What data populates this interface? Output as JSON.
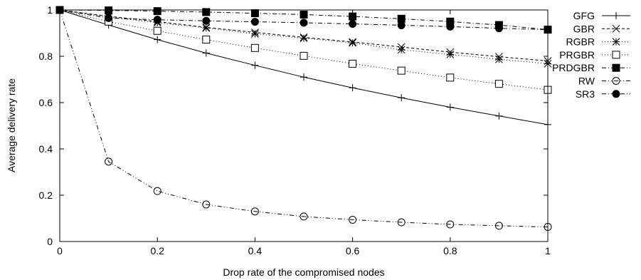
{
  "chart_data": {
    "type": "line",
    "xlabel": "Drop rate of the compromised nodes",
    "ylabel": "Average delivery rate",
    "xlim": [
      0,
      1
    ],
    "ylim": [
      0,
      1
    ],
    "x_ticks": [
      "0",
      "0.2",
      "0.4",
      "0.6",
      "0.8",
      "1"
    ],
    "y_ticks": [
      "0",
      "0.2",
      "0.4",
      "0.6",
      "0.8",
      "1"
    ],
    "grid": false,
    "legend_position": "right",
    "x": [
      0,
      0.1,
      0.2,
      0.3,
      0.4,
      0.5,
      0.6,
      0.7,
      0.8,
      0.9,
      1
    ],
    "series": [
      {
        "name": "GFG",
        "marker": "plus",
        "line": "solid",
        "fill": "none",
        "values": [
          1.0,
          0.935,
          0.872,
          0.814,
          0.761,
          0.71,
          0.664,
          0.621,
          0.58,
          0.542,
          0.505
        ]
      },
      {
        "name": "GBR",
        "marker": "cross",
        "line": "dashed",
        "fill": "none",
        "values": [
          1.0,
          0.973,
          0.95,
          0.925,
          0.903,
          0.882,
          0.862,
          0.84,
          0.818,
          0.798,
          0.78
        ]
      },
      {
        "name": "RGBR",
        "marker": "star",
        "line": "dotted",
        "fill": "none",
        "values": [
          1.0,
          0.97,
          0.945,
          0.922,
          0.897,
          0.878,
          0.858,
          0.828,
          0.808,
          0.787,
          0.768
        ]
      },
      {
        "name": "PRGBR",
        "marker": "square",
        "line": "dotted",
        "fill": "none",
        "values": [
          1.0,
          0.95,
          0.91,
          0.872,
          0.836,
          0.802,
          0.768,
          0.738,
          0.708,
          0.681,
          0.655
        ]
      },
      {
        "name": "PRDGBR",
        "marker": "square",
        "line": "dashdot",
        "fill": "filled",
        "values": [
          1.0,
          0.998,
          0.995,
          0.991,
          0.986,
          0.98,
          0.972,
          0.962,
          0.95,
          0.935,
          0.915
        ]
      },
      {
        "name": "RW",
        "marker": "circle",
        "line": "dashdotdot",
        "fill": "none",
        "values": [
          1.0,
          0.345,
          0.218,
          0.16,
          0.13,
          0.108,
          0.094,
          0.083,
          0.074,
          0.068,
          0.063
        ]
      },
      {
        "name": "SR3",
        "marker": "circle",
        "line": "dashdot",
        "fill": "filled",
        "values": [
          1.0,
          0.965,
          0.958,
          0.953,
          0.949,
          0.945,
          0.94,
          0.934,
          0.928,
          0.921,
          0.915
        ]
      }
    ]
  }
}
